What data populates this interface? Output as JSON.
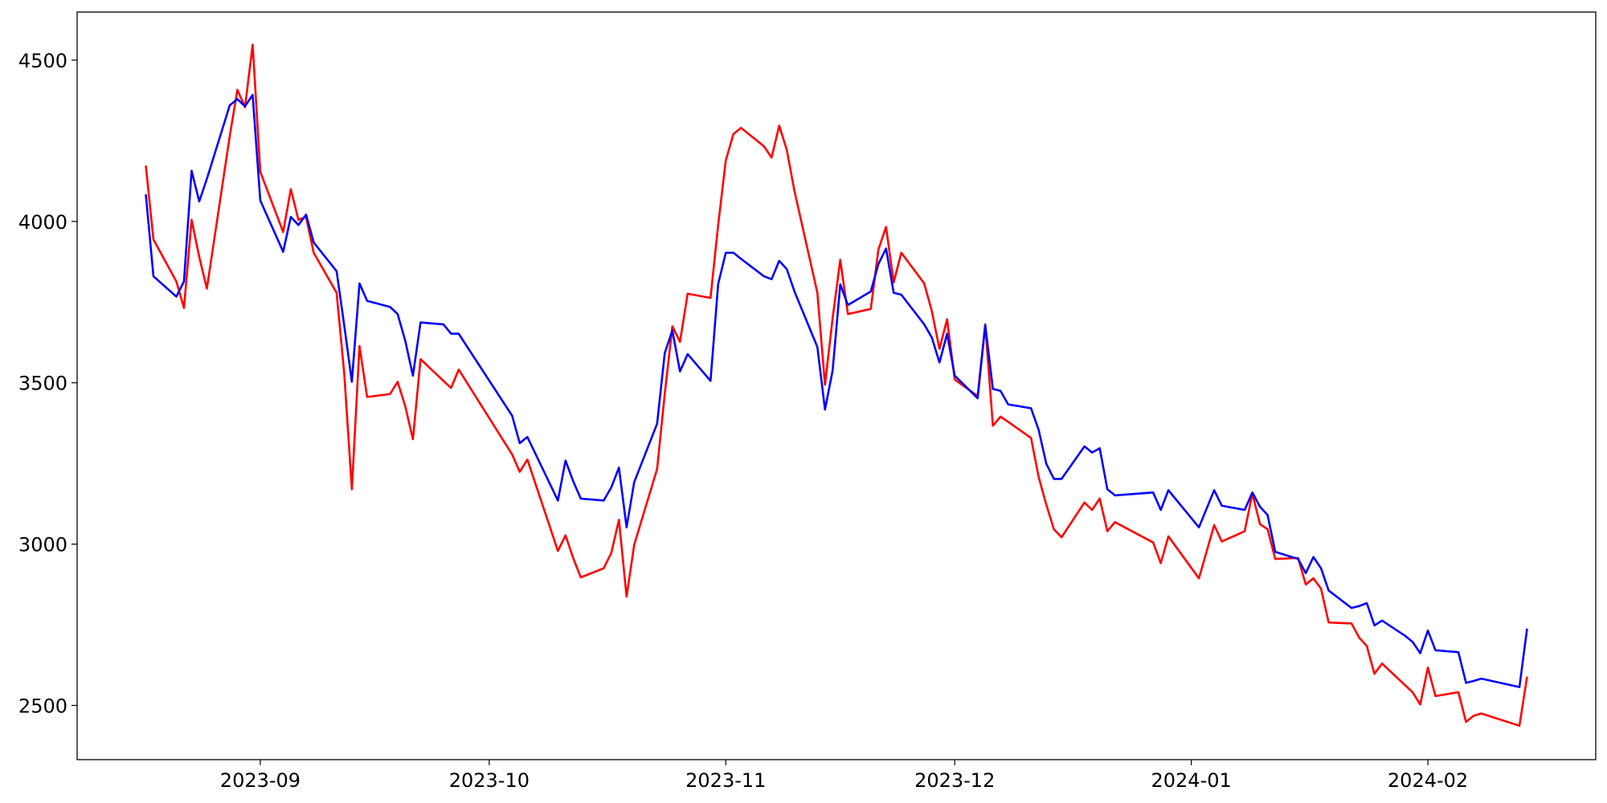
{
  "chart_data": {
    "type": "line",
    "x": [
      "2023-08-17",
      "2023-08-18",
      "2023-08-21",
      "2023-08-22",
      "2023-08-23",
      "2023-08-24",
      "2023-08-25",
      "2023-08-28",
      "2023-08-29",
      "2023-08-30",
      "2023-08-31",
      "2023-09-01",
      "2023-09-04",
      "2023-09-05",
      "2023-09-06",
      "2023-09-07",
      "2023-09-08",
      "2023-09-11",
      "2023-09-12",
      "2023-09-13",
      "2023-09-14",
      "2023-09-15",
      "2023-09-18",
      "2023-09-19",
      "2023-09-20",
      "2023-09-21",
      "2023-09-22",
      "2023-09-25",
      "2023-09-26",
      "2023-09-27",
      "2023-10-04",
      "2023-10-05",
      "2023-10-06",
      "2023-10-10",
      "2023-10-11",
      "2023-10-12",
      "2023-10-13",
      "2023-10-16",
      "2023-10-17",
      "2023-10-18",
      "2023-10-19",
      "2023-10-20",
      "2023-10-23",
      "2023-10-24",
      "2023-10-25",
      "2023-10-26",
      "2023-10-27",
      "2023-10-30",
      "2023-10-31",
      "2023-11-01",
      "2023-11-02",
      "2023-11-03",
      "2023-11-06",
      "2023-11-07",
      "2023-11-08",
      "2023-11-09",
      "2023-11-10",
      "2023-11-13",
      "2023-11-14",
      "2023-11-15",
      "2023-11-16",
      "2023-11-17",
      "2023-11-20",
      "2023-11-21",
      "2023-11-22",
      "2023-11-23",
      "2023-11-24",
      "2023-11-27",
      "2023-11-28",
      "2023-11-29",
      "2023-11-30",
      "2023-12-01",
      "2023-12-04",
      "2023-12-05",
      "2023-12-06",
      "2023-12-07",
      "2023-12-08",
      "2023-12-11",
      "2023-12-12",
      "2023-12-13",
      "2023-12-14",
      "2023-12-15",
      "2023-12-18",
      "2023-12-19",
      "2023-12-20",
      "2023-12-21",
      "2023-12-22",
      "2023-12-27",
      "2023-12-28",
      "2023-12-29",
      "2024-01-02",
      "2024-01-04",
      "2024-01-05",
      "2024-01-08",
      "2024-01-09",
      "2024-01-10",
      "2024-01-11",
      "2024-01-12",
      "2024-01-15",
      "2024-01-16",
      "2024-01-17",
      "2024-01-18",
      "2024-01-19",
      "2024-01-22",
      "2024-01-23",
      "2024-01-24",
      "2024-01-25",
      "2024-01-26",
      "2024-01-29",
      "2024-01-30",
      "2024-01-31",
      "2024-02-01",
      "2024-02-02",
      "2024-02-05",
      "2024-02-06",
      "2024-02-07",
      "2024-02-08",
      "2024-02-13",
      "2024-02-14"
    ],
    "series": [
      {
        "color": "#ff0000",
        "values": [
          4173,
          3944,
          3814,
          3732,
          4005,
          3890,
          3792,
          4265,
          4408,
          4354,
          4548,
          4154,
          3967,
          4100,
          4005,
          4014,
          3903,
          3779,
          3529,
          3170,
          3614,
          3456,
          3465,
          3503,
          3427,
          3325,
          3573,
          3506,
          3484,
          3541,
          3278,
          3224,
          3262,
          2979,
          3027,
          2957,
          2897,
          2925,
          2973,
          3075,
          2837,
          2998,
          3233,
          3465,
          3675,
          3627,
          3776,
          3763,
          3989,
          4189,
          4271,
          4290,
          4233,
          4198,
          4297,
          4221,
          4094,
          3779,
          3494,
          3700,
          3881,
          3713,
          3729,
          3913,
          3983,
          3811,
          3903,
          3808,
          3722,
          3605,
          3697,
          3510,
          3459,
          3681,
          3367,
          3395,
          3379,
          3329,
          3208,
          3122,
          3046,
          3021,
          3129,
          3106,
          3141,
          3040,
          3068,
          3005,
          2941,
          3024,
          2894,
          3059,
          3008,
          3040,
          3157,
          3062,
          3046,
          2954,
          2957,
          2875,
          2894,
          2862,
          2757,
          2754,
          2710,
          2684,
          2598,
          2630,
          2563,
          2541,
          2503,
          2617,
          2529,
          2541,
          2449,
          2468,
          2475,
          2437,
          2589
        ]
      },
      {
        "color": "#0000ff",
        "values": [
          4084,
          3830,
          3767,
          3814,
          4157,
          4062,
          4132,
          4360,
          4379,
          4357,
          4392,
          4065,
          3906,
          4014,
          3989,
          4021,
          3935,
          3846,
          3678,
          3503,
          3808,
          3754,
          3735,
          3713,
          3630,
          3522,
          3687,
          3681,
          3652,
          3652,
          3398,
          3313,
          3332,
          3135,
          3259,
          3195,
          3141,
          3135,
          3176,
          3237,
          3052,
          3192,
          3373,
          3592,
          3662,
          3535,
          3589,
          3506,
          3806,
          3903,
          3903,
          3884,
          3830,
          3821,
          3878,
          3852,
          3783,
          3611,
          3417,
          3538,
          3805,
          3741,
          3783,
          3868,
          3916,
          3779,
          3773,
          3681,
          3640,
          3563,
          3652,
          3522,
          3452,
          3678,
          3481,
          3475,
          3433,
          3421,
          3354,
          3249,
          3202,
          3202,
          3303,
          3284,
          3297,
          3170,
          3151,
          3160,
          3106,
          3167,
          3052,
          3167,
          3119,
          3106,
          3160,
          3116,
          3090,
          2976,
          2954,
          2910,
          2960,
          2925,
          2856,
          2802,
          2808,
          2817,
          2748,
          2763,
          2716,
          2697,
          2662,
          2732,
          2671,
          2665,
          2570,
          2576,
          2583,
          2557,
          2738
        ]
      }
    ],
    "xlim": [
      "2023-08-08",
      "2024-02-23"
    ],
    "xticks": [
      {
        "value": "2023-09-01",
        "label": "2023-09"
      },
      {
        "value": "2023-10-01",
        "label": "2023-10"
      },
      {
        "value": "2023-11-01",
        "label": "2023-11"
      },
      {
        "value": "2023-12-01",
        "label": "2023-12"
      },
      {
        "value": "2024-01-01",
        "label": "2024-01"
      },
      {
        "value": "2024-02-01",
        "label": "2024-02"
      }
    ],
    "ylim": [
      2332,
      4649
    ],
    "yticks": [
      2500,
      3000,
      3500,
      4000,
      4500
    ]
  }
}
